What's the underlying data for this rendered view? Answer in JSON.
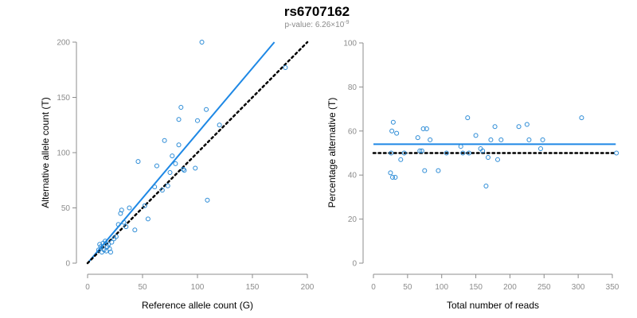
{
  "title": "rs6707162",
  "subtitle_prefix": "p-value: 6.26×10",
  "subtitle_exp": "-9",
  "colors": {
    "points": "#2b8bd6",
    "fit_line": "#1e88e5",
    "reference_line": "#000000",
    "axis": "#8c8c8c"
  },
  "chart_data": [
    {
      "type": "scatter",
      "title": "",
      "xlabel": "Reference allele count (G)",
      "ylabel": "Alternative allele count (T)",
      "xlim": [
        0,
        200
      ],
      "ylim": [
        0,
        200
      ],
      "xticks": [
        0,
        50,
        100,
        150,
        200
      ],
      "yticks": [
        0,
        50,
        100,
        150,
        200
      ],
      "grid": false,
      "fit_line": {
        "x": [
          0,
          170
        ],
        "y": [
          0,
          200
        ]
      },
      "reference_line": {
        "x": [
          0,
          200
        ],
        "y": [
          0,
          200
        ]
      },
      "points": [
        [
          10,
          12
        ],
        [
          11,
          17
        ],
        [
          12,
          15
        ],
        [
          13,
          10
        ],
        [
          14,
          18
        ],
        [
          15,
          12
        ],
        [
          16,
          20
        ],
        [
          17,
          11
        ],
        [
          18,
          15
        ],
        [
          19,
          17
        ],
        [
          20,
          13
        ],
        [
          21,
          10
        ],
        [
          22,
          19
        ],
        [
          24,
          22
        ],
        [
          26,
          24
        ],
        [
          28,
          35
        ],
        [
          30,
          45
        ],
        [
          31,
          48
        ],
        [
          33,
          37
        ],
        [
          35,
          33
        ],
        [
          38,
          50
        ],
        [
          43,
          30
        ],
        [
          46,
          92
        ],
        [
          52,
          52
        ],
        [
          55,
          40
        ],
        [
          61,
          69
        ],
        [
          63,
          88
        ],
        [
          68,
          66
        ],
        [
          70,
          111
        ],
        [
          73,
          70
        ],
        [
          75,
          82
        ],
        [
          77,
          97
        ],
        [
          80,
          90
        ],
        [
          83,
          130
        ],
        [
          83,
          107
        ],
        [
          85,
          141
        ],
        [
          87,
          85
        ],
        [
          88,
          84
        ],
        [
          98,
          86
        ],
        [
          100,
          129
        ],
        [
          104,
          200
        ],
        [
          108,
          139
        ],
        [
          109,
          57
        ],
        [
          120,
          125
        ],
        [
          180,
          177
        ]
      ]
    },
    {
      "type": "scatter",
      "title": "",
      "xlabel": "Total number of reads",
      "ylabel": "Percentage alternative (T)",
      "xlim": [
        0,
        350
      ],
      "ylim": [
        0,
        100
      ],
      "xticks": [
        0,
        50,
        100,
        150,
        200,
        250,
        300,
        350
      ],
      "yticks": [
        0,
        20,
        40,
        60,
        80,
        100
      ],
      "grid": false,
      "fit_line": {
        "x": [
          0,
          355
        ],
        "y": [
          54,
          54
        ]
      },
      "reference_line": {
        "x": [
          0,
          355
        ],
        "y": [
          50,
          50
        ]
      },
      "points": [
        [
          25,
          41
        ],
        [
          26,
          50
        ],
        [
          27,
          60
        ],
        [
          28,
          39
        ],
        [
          29,
          64
        ],
        [
          32,
          39
        ],
        [
          34,
          59
        ],
        [
          40,
          47
        ],
        [
          45,
          50
        ],
        [
          65,
          57
        ],
        [
          68,
          51
        ],
        [
          71,
          51
        ],
        [
          73,
          61
        ],
        [
          75,
          42
        ],
        [
          78,
          61
        ],
        [
          83,
          56
        ],
        [
          95,
          42
        ],
        [
          107,
          50
        ],
        [
          128,
          53
        ],
        [
          131,
          50
        ],
        [
          138,
          66
        ],
        [
          140,
          50
        ],
        [
          150,
          58
        ],
        [
          157,
          52
        ],
        [
          160,
          51
        ],
        [
          165,
          35
        ],
        [
          168,
          48
        ],
        [
          172,
          56
        ],
        [
          178,
          62
        ],
        [
          182,
          47
        ],
        [
          187,
          56
        ],
        [
          213,
          62
        ],
        [
          225,
          63
        ],
        [
          228,
          56
        ],
        [
          245,
          52
        ],
        [
          248,
          56
        ],
        [
          305,
          66
        ],
        [
          356,
          50
        ]
      ]
    }
  ]
}
